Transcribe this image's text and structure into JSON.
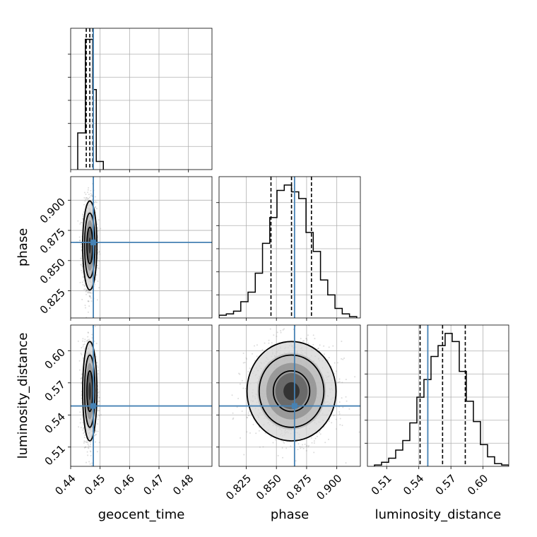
{
  "chart_data": {
    "type": "corner",
    "parameters": [
      "geocent_time",
      "phase",
      "luminosity_distance"
    ],
    "axis_labels": {
      "geocent_time": "geocent_time",
      "phase": "phase",
      "luminosity_distance": "luminosity_distance"
    },
    "ranges": {
      "geocent_time": [
        0.44,
        0.488
      ],
      "phase": [
        0.8025,
        0.9195
      ],
      "luminosity_distance": [
        0.492,
        0.624
      ]
    },
    "ticks": {
      "geocent_time": [
        0.44,
        0.45,
        0.46,
        0.47,
        0.48
      ],
      "phase": [
        0.825,
        0.85,
        0.875,
        0.9
      ],
      "luminosity_distance": [
        0.51,
        0.54,
        0.57,
        0.6
      ]
    },
    "tick_labels": {
      "geocent_time": [
        "0.44",
        "0.45",
        "0.46",
        "0.47",
        "0.48"
      ],
      "phase": [
        "0.825",
        "0.850",
        "0.875",
        "0.900"
      ],
      "luminosity_distance": [
        "0.51",
        "0.54",
        "0.57",
        "0.60"
      ]
    },
    "truths": {
      "geocent_time": 0.4477,
      "phase": 0.865,
      "luminosity_distance": 0.5484
    },
    "quantiles": {
      "geocent_time": [
        0.4453,
        0.4465,
        0.4475
      ],
      "phase": [
        0.8455,
        0.8625,
        0.879
      ],
      "luminosity_distance": [
        0.5412,
        0.5622,
        0.5834
      ]
    },
    "histograms": {
      "geocent_time": {
        "edges": [
          0.4424,
          0.445,
          0.4465,
          0.4475,
          0.4487,
          0.4511
        ],
        "counts": [
          0.27,
          0.96,
          0.96,
          0.59,
          0.06
        ]
      },
      "phase": {
        "edges": [
          0.8025,
          0.8085,
          0.8145,
          0.8205,
          0.8265,
          0.8325,
          0.8385,
          0.8445,
          0.8505,
          0.8565,
          0.8625,
          0.8685,
          0.8745,
          0.8805,
          0.8865,
          0.8925,
          0.8985,
          0.9045,
          0.9105,
          0.9165
        ],
        "counts": [
          0.02,
          0.03,
          0.05,
          0.12,
          0.19,
          0.33,
          0.55,
          0.74,
          0.94,
          0.98,
          0.93,
          0.88,
          0.63,
          0.49,
          0.28,
          0.17,
          0.07,
          0.03,
          0.01
        ]
      },
      "luminosity_distance": {
        "edges": [
          0.4986,
          0.5052,
          0.5118,
          0.5184,
          0.525,
          0.5316,
          0.5382,
          0.5448,
          0.5514,
          0.558,
          0.5646,
          0.5712,
          0.5778,
          0.5844,
          0.591,
          0.5976,
          0.6042,
          0.6108,
          0.6174,
          0.624
        ],
        "counts": [
          0.01,
          0.03,
          0.06,
          0.12,
          0.19,
          0.32,
          0.51,
          0.64,
          0.81,
          0.89,
          0.98,
          0.92,
          0.7,
          0.48,
          0.33,
          0.16,
          0.07,
          0.02,
          0.01
        ]
      }
    },
    "contour_levels": [
      "1 sigma",
      "2 sigma",
      "3 sigma"
    ],
    "grid": true,
    "colors": {
      "truth": "#4682b4",
      "hist": "#000000",
      "grid": "#b0b0b0",
      "samples": "#9a9a9a"
    }
  }
}
